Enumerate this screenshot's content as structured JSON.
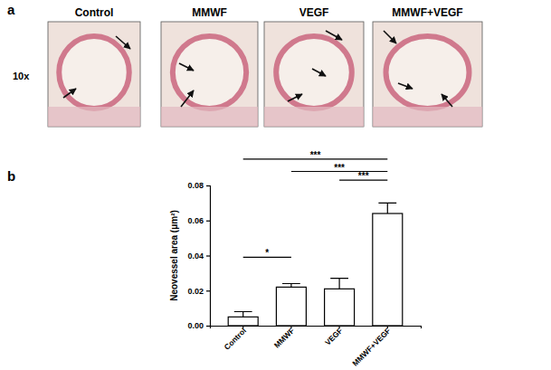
{
  "panel_a": {
    "letter": "a",
    "magnification": "10x",
    "titles": [
      "Control",
      "MMWF",
      "VEGF",
      "MMWF+VEGF"
    ]
  },
  "chart_data": {
    "type": "bar",
    "panel_label": "b",
    "categories": [
      "Control",
      "MMWF",
      "VEGF",
      "MMWF+VEGF"
    ],
    "values": [
      0.005,
      0.022,
      0.021,
      0.064
    ],
    "errors": [
      0.003,
      0.002,
      0.006,
      0.006
    ],
    "color": "#ffffff",
    "y_label": "Neovessel area (μm²)",
    "ylim": [
      0,
      0.08
    ],
    "yticks": [
      {
        "value": 0,
        "label": "0.00"
      },
      {
        "value": 0.02,
        "label": "0.02"
      },
      {
        "value": 0.04,
        "label": "0.04"
      },
      {
        "value": 0.06,
        "label": "0.06"
      },
      {
        "value": 0.08,
        "label": "0.08"
      }
    ],
    "annotations": [
      {
        "label": "*",
        "from": 0,
        "to": 1,
        "y": 0.039
      },
      {
        "label": "***",
        "from": 0,
        "to": 3,
        "y": 0.095
      },
      {
        "label": "***",
        "from": 1,
        "to": 3,
        "y": 0.088
      },
      {
        "label": "***",
        "from": 2,
        "to": 3,
        "y": 0.083
      }
    ],
    "grid": false
  }
}
